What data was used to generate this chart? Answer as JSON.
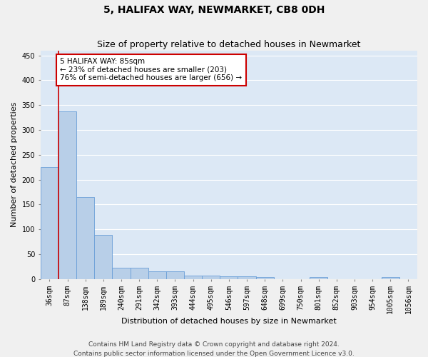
{
  "title": "5, HALIFAX WAY, NEWMARKET, CB8 0DH",
  "subtitle": "Size of property relative to detached houses in Newmarket",
  "xlabel": "Distribution of detached houses by size in Newmarket",
  "ylabel": "Number of detached properties",
  "categories": [
    "36sqm",
    "87sqm",
    "138sqm",
    "189sqm",
    "240sqm",
    "291sqm",
    "342sqm",
    "393sqm",
    "444sqm",
    "495sqm",
    "546sqm",
    "597sqm",
    "648sqm",
    "699sqm",
    "750sqm",
    "801sqm",
    "852sqm",
    "903sqm",
    "954sqm",
    "1005sqm",
    "1056sqm"
  ],
  "values": [
    225,
    337,
    165,
    88,
    22,
    22,
    15,
    15,
    7,
    7,
    5,
    5,
    4,
    0,
    0,
    4,
    0,
    0,
    0,
    4,
    0
  ],
  "bar_color": "#b8cfe8",
  "bar_edge_color": "#6a9fd8",
  "background_color": "#dce8f5",
  "grid_color": "#ffffff",
  "vline_color": "#cc0000",
  "annotation_text": "5 HALIFAX WAY: 85sqm\n← 23% of detached houses are smaller (203)\n76% of semi-detached houses are larger (656) →",
  "annotation_box_color": "#ffffff",
  "annotation_box_edge": "#cc0000",
  "footer1": "Contains HM Land Registry data © Crown copyright and database right 2024.",
  "footer2": "Contains public sector information licensed under the Open Government Licence v3.0.",
  "ylim": [
    0,
    460
  ],
  "yticks": [
    0,
    50,
    100,
    150,
    200,
    250,
    300,
    350,
    400,
    450
  ],
  "title_fontsize": 10,
  "subtitle_fontsize": 9,
  "axis_label_fontsize": 8,
  "tick_fontsize": 7,
  "annotation_fontsize": 7.5,
  "footer_fontsize": 6.5,
  "fig_facecolor": "#f0f0f0"
}
